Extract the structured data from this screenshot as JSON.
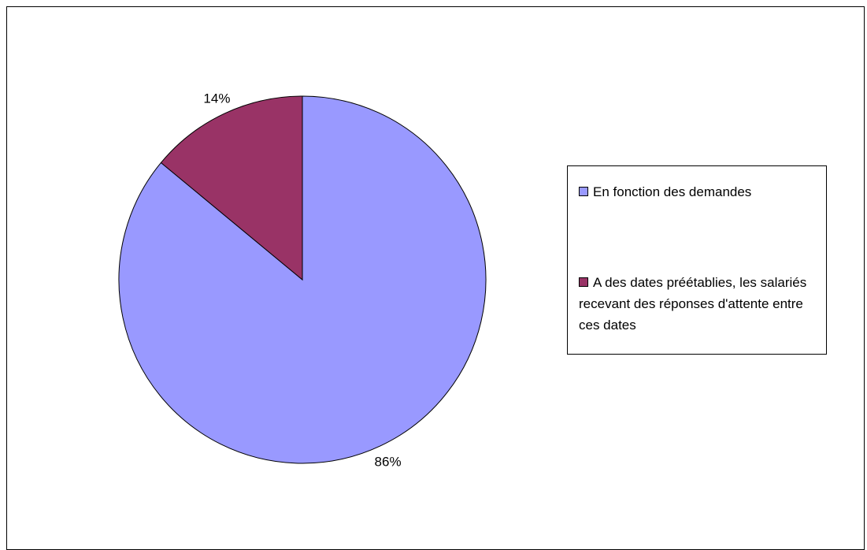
{
  "chart_data": {
    "type": "pie",
    "categories": [
      "En fonction des demandes",
      "A des dates préétablies, les salariés recevant des réponses d'attente entre ces dates"
    ],
    "values": [
      86,
      14
    ],
    "data_labels": [
      "86%",
      "14%"
    ],
    "colors": [
      "#9999ff",
      "#993366"
    ],
    "legend_position": "right"
  }
}
